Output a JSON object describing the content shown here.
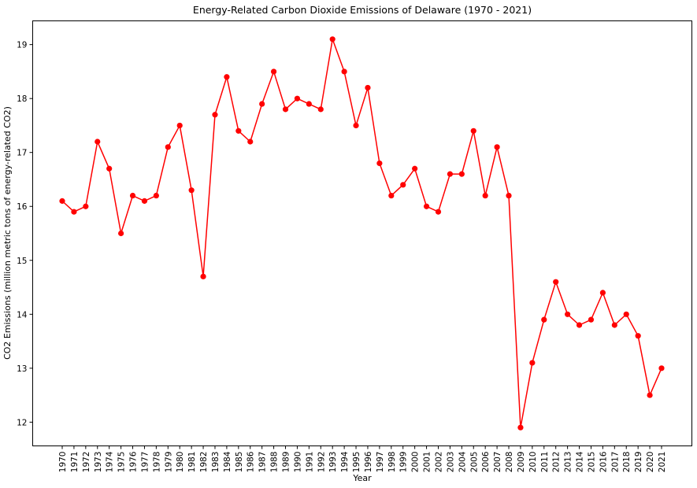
{
  "chart_data": {
    "type": "line",
    "title": "Energy-Related Carbon Dioxide Emissions of Delaware (1970 - 2021)",
    "xlabel": "Year",
    "ylabel": "CO2 Emissions (million metric tons of energy-related CO2)",
    "x": [
      "1970",
      "1971",
      "1972",
      "1973",
      "1974",
      "1975",
      "1976",
      "1977",
      "1978",
      "1979",
      "1980",
      "1981",
      "1982",
      "1983",
      "1984",
      "1985",
      "1986",
      "1987",
      "1988",
      "1989",
      "1990",
      "1991",
      "1992",
      "1993",
      "1994",
      "1995",
      "1996",
      "1997",
      "1998",
      "1999",
      "2000",
      "2001",
      "2002",
      "2003",
      "2004",
      "2005",
      "2006",
      "2007",
      "2008",
      "2009",
      "2010",
      "2011",
      "2012",
      "2013",
      "2014",
      "2015",
      "2016",
      "2017",
      "2018",
      "2019",
      "2020",
      "2021"
    ],
    "series": [
      {
        "color": "#ff0000",
        "values": [
          16.1,
          15.9,
          16.0,
          17.2,
          16.7,
          15.5,
          16.2,
          16.1,
          16.2,
          17.1,
          17.5,
          16.3,
          14.7,
          17.7,
          18.4,
          17.4,
          17.2,
          17.9,
          18.5,
          17.8,
          18.0,
          17.9,
          17.8,
          19.1,
          18.5,
          17.5,
          18.2,
          16.8,
          16.2,
          16.4,
          16.7,
          16.0,
          15.9,
          16.6,
          16.6,
          17.4,
          16.2,
          17.1,
          16.2,
          11.9,
          13.1,
          13.9,
          14.6,
          14.0,
          13.8,
          13.9,
          14.4,
          13.8,
          14.0,
          13.6,
          12.5,
          13.0
        ]
      }
    ],
    "yticks": [
      "12",
      "13",
      "14",
      "15",
      "16",
      "17",
      "18",
      "19"
    ],
    "ylim": [
      11.56,
      19.44
    ],
    "grid": false,
    "legend": "none"
  }
}
